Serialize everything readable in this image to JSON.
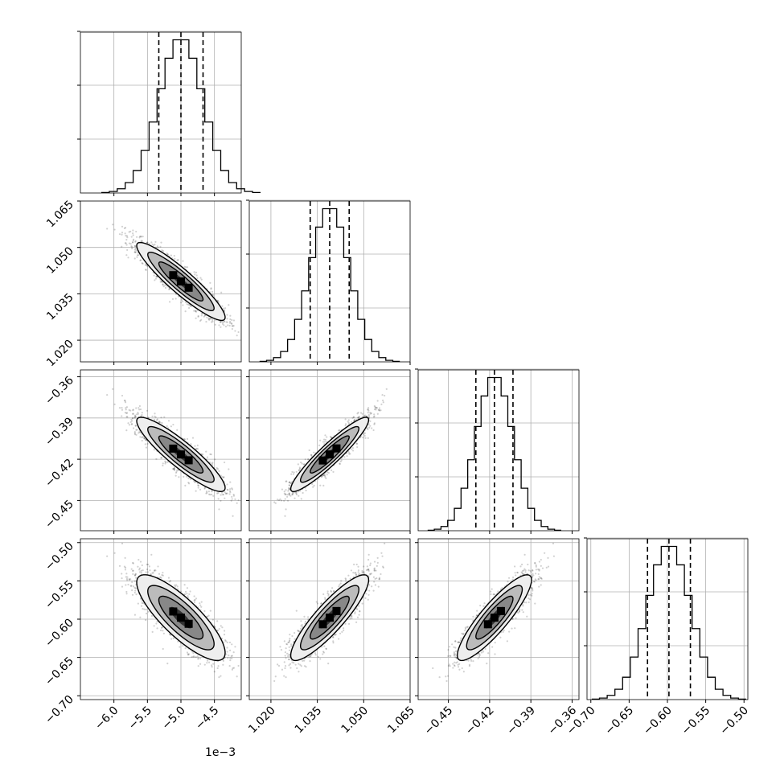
{
  "chart_data": {
    "type": "corner",
    "grid": true,
    "x_offset_text": "1e−3",
    "parameters": [
      {
        "range": [
          -6.5,
          -4.1
        ],
        "ticks": [
          -6.0,
          -5.5,
          -5.0,
          -4.5
        ],
        "tick_labels": [
          "−6.0",
          "−5.5",
          "−5.0",
          "−4.5"
        ],
        "mean": -5.0,
        "sd": 0.33,
        "quantiles": [
          -5.33,
          -5.0,
          -4.67
        ]
      },
      {
        "range": [
          1.013,
          1.065
        ],
        "ticks": [
          1.02,
          1.035,
          1.05,
          1.065
        ],
        "tick_labels": [
          "1.020",
          "1.035",
          "1.050",
          "1.065"
        ],
        "mean": 1.039,
        "sd": 0.0063,
        "quantiles": [
          1.0327,
          1.039,
          1.0453
        ]
      },
      {
        "range": [
          -0.472,
          -0.355
        ],
        "ticks": [
          -0.45,
          -0.42,
          -0.39,
          -0.36
        ],
        "tick_labels": [
          "−0.45",
          "−0.42",
          "−0.39",
          "−0.36"
        ],
        "mean": -0.4165,
        "sd": 0.0135,
        "quantiles": [
          -0.43,
          -0.4165,
          -0.403
        ]
      },
      {
        "range": [
          -0.705,
          -0.495
        ],
        "ticks": [
          -0.7,
          -0.65,
          -0.6,
          -0.55,
          -0.5
        ],
        "tick_labels": [
          "−0.70",
          "−0.65",
          "−0.60",
          "−0.55",
          "−0.50"
        ],
        "mean": -0.598,
        "sd": 0.028,
        "quantiles": [
          -0.626,
          -0.598,
          -0.57
        ]
      }
    ],
    "correlation": [
      [
        1.0,
        -0.92,
        -0.9,
        -0.82
      ],
      [
        -0.92,
        1.0,
        0.93,
        0.88
      ],
      [
        -0.9,
        0.93,
        1.0,
        0.88
      ],
      [
        -0.82,
        0.88,
        0.88,
        1.0
      ]
    ],
    "histogram_bins": 20
  }
}
